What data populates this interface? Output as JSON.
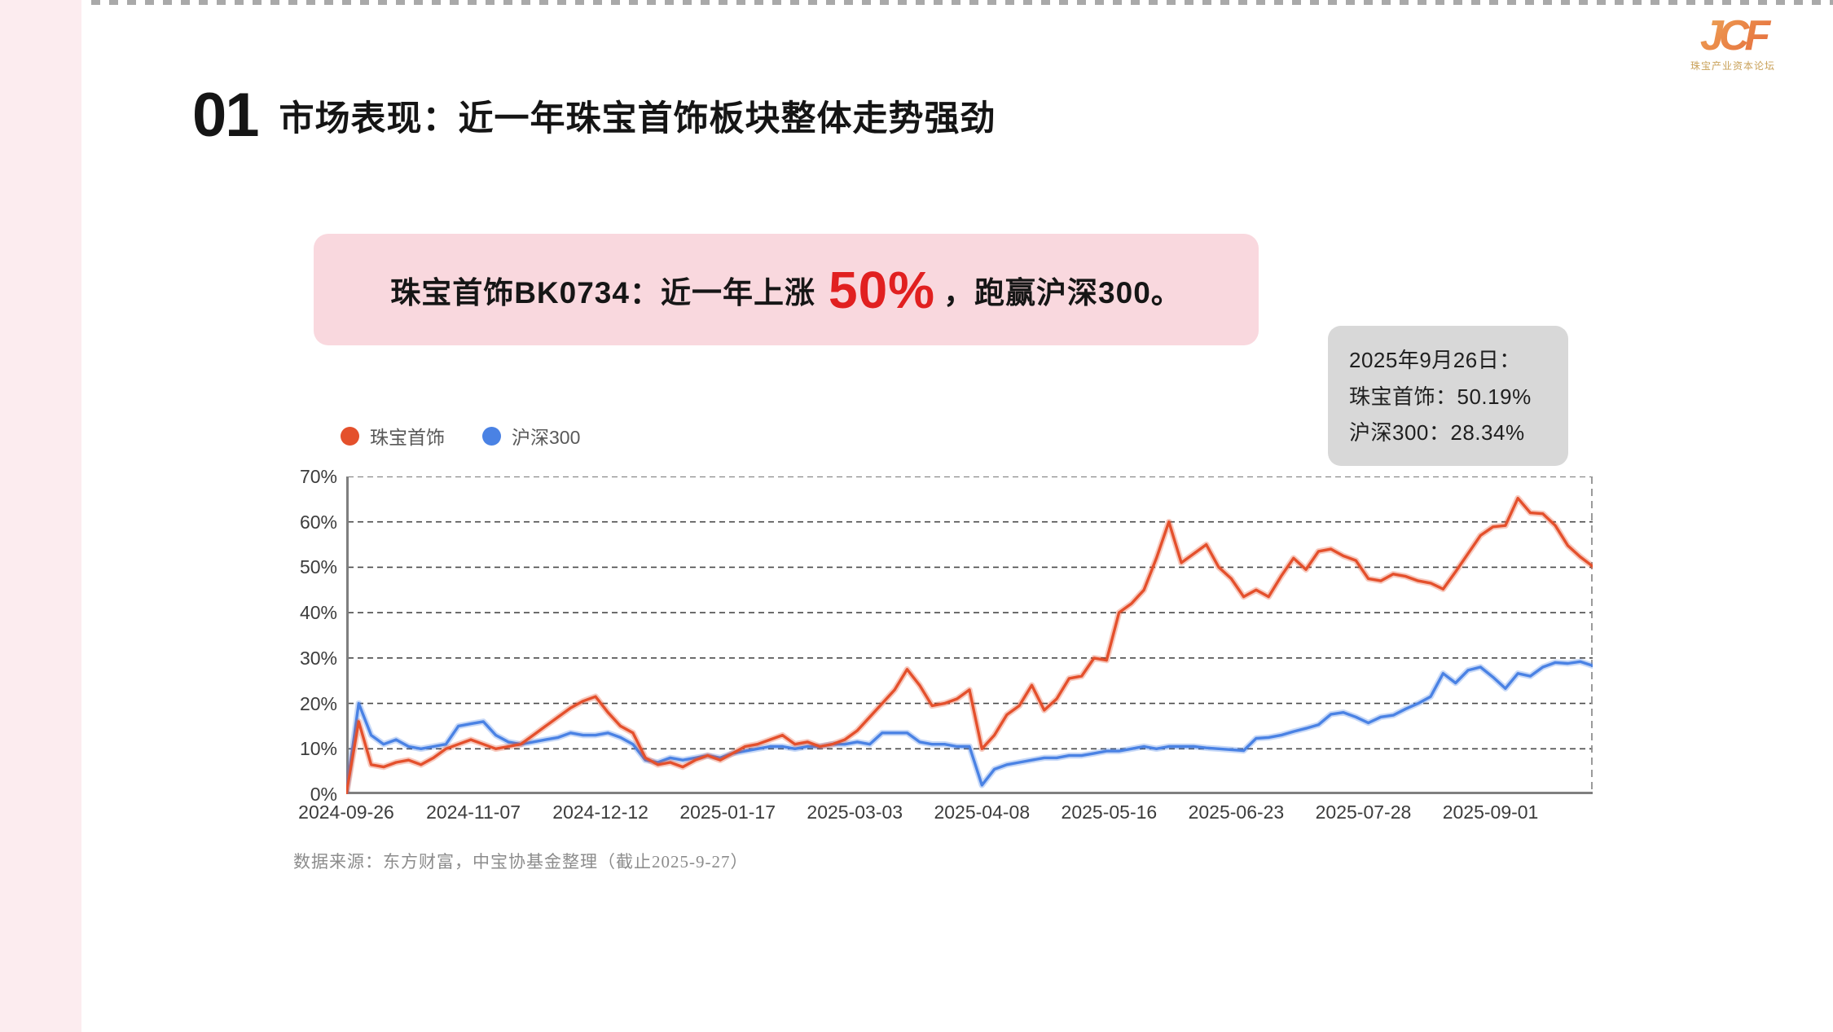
{
  "page": {
    "slide_number": "01",
    "title": "市场表现：近一年珠宝首饰板块整体走势强劲"
  },
  "logo": {
    "monogram": "JCF",
    "caption": "珠宝产业资本论坛"
  },
  "callout": {
    "prefix": "珠宝首饰BK0734：近一年上涨",
    "highlight": "50%",
    "suffix": "，跑赢沪深300。"
  },
  "annotation_box": {
    "line1": "2025年9月26日：",
    "line2": "珠宝首饰：50.19%",
    "line3": "沪深300：28.34%"
  },
  "legend": [
    {
      "label": "珠宝首饰",
      "color": "#e4502c"
    },
    {
      "label": "沪深300",
      "color": "#4a82e4"
    }
  ],
  "source_note": "数据来源：东方财富，中宝协基金整理（截止2025-9-27）",
  "colors": {
    "jewelry_line": "#e4502c",
    "csi300_line": "#4a82e4",
    "highlight_red": "#e12020",
    "callout_bg": "#f9d8de",
    "annotation_bg": "#d8d8d8",
    "grid": "#4a4a4a",
    "axis": "#7f7f7f"
  },
  "chart_data": {
    "type": "line",
    "title": "",
    "xlabel": "",
    "ylabel": "",
    "ylim": [
      0,
      70
    ],
    "grid": "dashed horizontal gridlines every 10%",
    "legend_position": "top-left",
    "y_ticks": [
      "70%",
      "60%",
      "50%",
      "40%",
      "30%",
      "20%",
      "10%",
      "0%"
    ],
    "x_ticks": [
      "2024-09-26",
      "2024-11-07",
      "2024-12-12",
      "2025-01-17",
      "2025-03-03",
      "2025-04-08",
      "2025-05-16",
      "2025-06-23",
      "2025-07-28",
      "2025-09-01"
    ],
    "x_tick_step_frac": 0.102,
    "end_values": {
      "珠宝首饰": 50.19,
      "沪深300": 28.34
    },
    "series": [
      {
        "name": "珠宝首饰",
        "color": "#e4502c",
        "values": [
          0,
          16,
          6.5,
          6,
          7,
          7.5,
          6.5,
          8,
          10,
          11,
          12,
          11,
          10,
          10.5,
          11,
          13,
          15,
          17,
          19,
          20.5,
          21.5,
          18,
          15,
          13.5,
          8,
          6.5,
          7,
          6,
          7.5,
          8.5,
          7.5,
          9,
          10.5,
          11,
          12,
          13,
          11,
          11.5,
          10.5,
          11,
          12,
          14,
          17,
          20,
          23,
          27.5,
          24,
          19.5,
          20,
          21,
          23,
          10,
          13,
          17.5,
          19.5,
          24,
          18.5,
          21,
          25.5,
          26,
          30,
          29.5,
          40,
          42,
          45,
          52,
          60,
          51,
          53,
          55,
          50,
          47.5,
          43.5,
          45,
          43.5,
          48,
          52,
          49.5,
          53.5,
          54,
          52.5,
          51.5,
          47.5,
          47,
          48.5,
          48,
          47,
          46.5,
          45.2,
          49,
          53,
          57,
          58.9,
          59.2,
          65.2,
          62,
          61.8,
          59.2,
          54.8,
          52.3,
          50.2
        ]
      },
      {
        "name": "沪深300",
        "color": "#4a82e4",
        "values": [
          0,
          20,
          13,
          11,
          12,
          10.5,
          10,
          10.5,
          11,
          15,
          15.5,
          16,
          13,
          11.5,
          11,
          11.5,
          12,
          12.5,
          13.5,
          13,
          13,
          13.5,
          12.5,
          11,
          7.5,
          7,
          8,
          7.5,
          8,
          8.5,
          8,
          9,
          9.5,
          10,
          10.5,
          10.5,
          10,
          10.5,
          10.5,
          11,
          11,
          11.5,
          11,
          13.5,
          13.5,
          13.5,
          11.5,
          11,
          11,
          10.5,
          10.5,
          2,
          5.5,
          6.5,
          7,
          7.5,
          8,
          8,
          8.5,
          8.5,
          9,
          9.5,
          9.5,
          10,
          10.5,
          10,
          10.5,
          10.5,
          10.5,
          10.2,
          10,
          9.8,
          9.6,
          12.3,
          12.5,
          13,
          13.8,
          14.5,
          15.3,
          17.6,
          18,
          17,
          15.7,
          17,
          17.4,
          18.8,
          20,
          21.5,
          26.6,
          24.5,
          27.3,
          28,
          25.8,
          23.3,
          26.6,
          26,
          28,
          29,
          28.8,
          29.2,
          28.3
        ]
      }
    ]
  }
}
